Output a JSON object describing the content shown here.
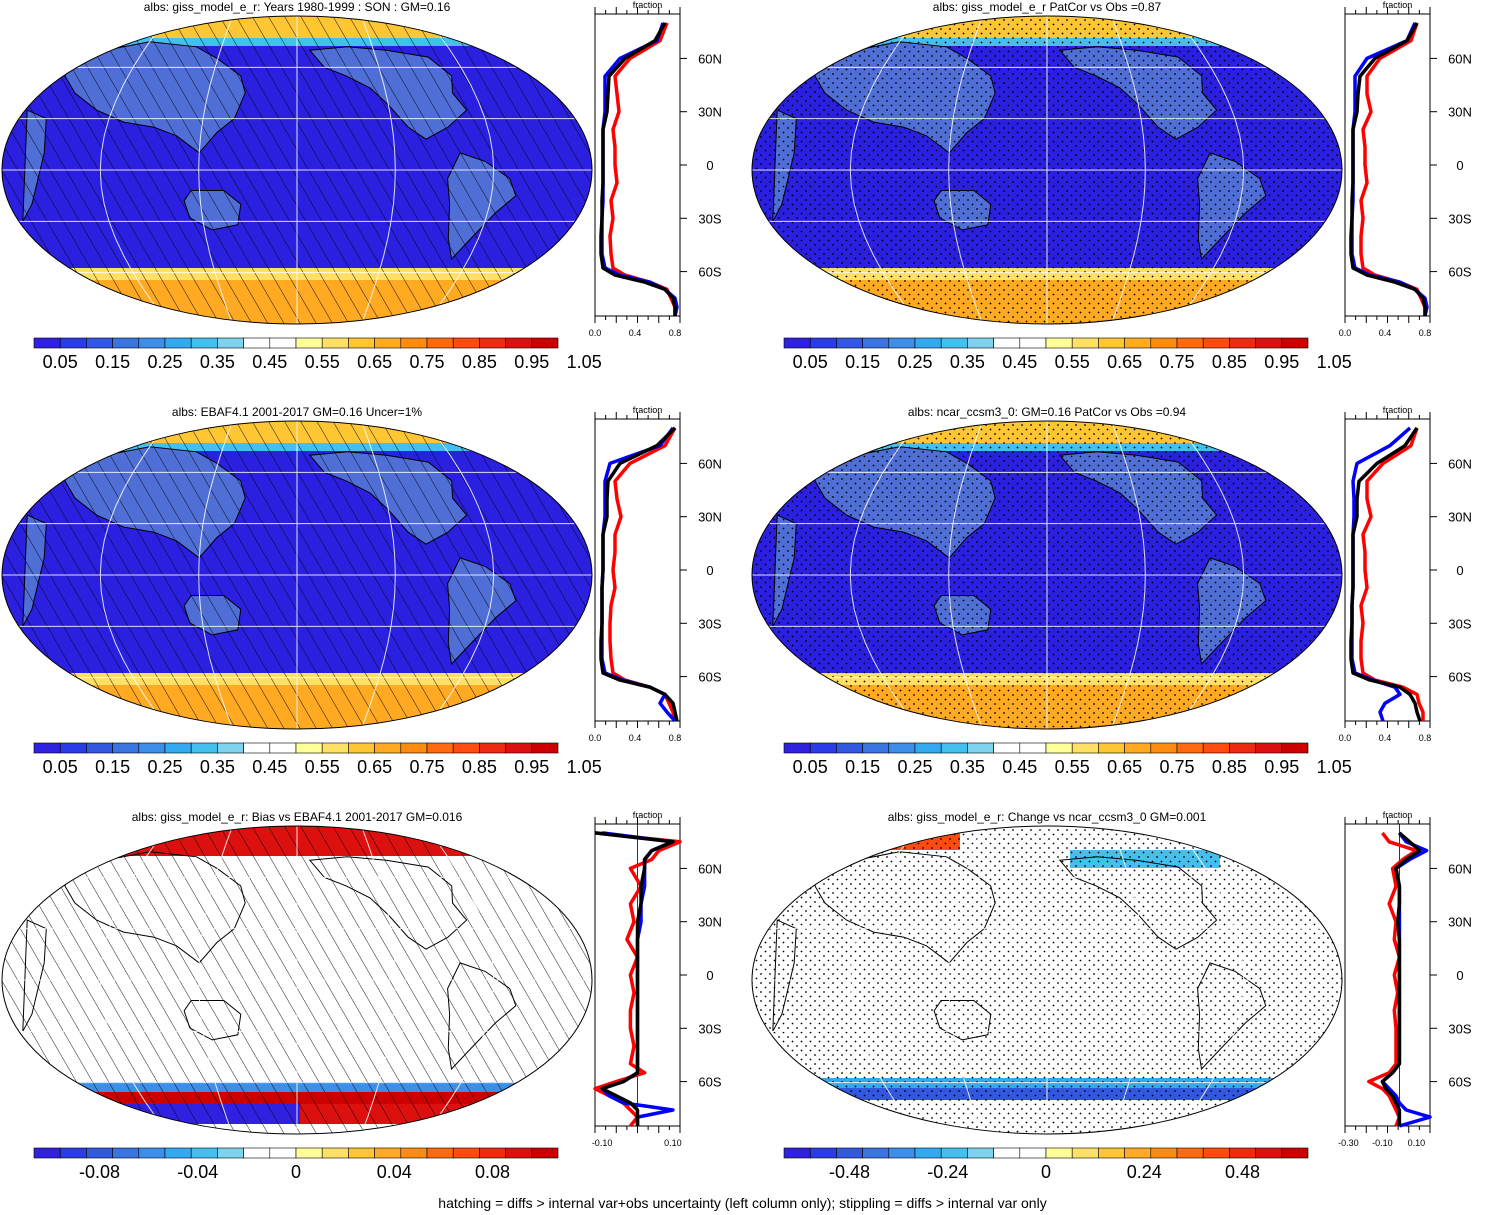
{
  "colors": {
    "model": "#000000",
    "obs": "#ff0000",
    "other_model": "#0000ff",
    "land": "#4f6fd6",
    "grid": "#ffffff"
  },
  "lat_ticks": [
    "60N",
    "30N",
    "0",
    "30S",
    "60S"
  ],
  "footnote": "hatching = diffs > internal var+obs uncertainty (left column only); stippling = diffs > internal var only",
  "panels": [
    {
      "id": "p1",
      "title": "albs: giss_model_e_r: Years 1980-1999 : SON : GM=0.16",
      "field": "absolute",
      "pattern": "hatch",
      "colorbar_labels": [
        "0.05",
        "0.15",
        "0.25",
        "0.35",
        "0.45",
        "0.55",
        "0.65",
        "0.75",
        "0.85",
        "0.95",
        "1.05"
      ],
      "zonal": {
        "unit_label": "fraction",
        "xticks": [
          "0.0",
          "0.4",
          "0.8"
        ],
        "xlim": [
          0.0,
          0.85
        ]
      }
    },
    {
      "id": "p2",
      "title": "albs: giss_model_e_r PatCor vs Obs =0.87",
      "field": "absolute",
      "pattern": "stipple",
      "colorbar_labels": [
        "0.05",
        "0.15",
        "0.25",
        "0.35",
        "0.45",
        "0.55",
        "0.65",
        "0.75",
        "0.85",
        "0.95",
        "1.05"
      ],
      "zonal": {
        "unit_label": "fraction",
        "xticks": [
          "0.0",
          "0.4",
          "0.8"
        ],
        "xlim": [
          0.0,
          0.85
        ]
      }
    },
    {
      "id": "p3",
      "title": "albs: EBAF4.1 2001-2017 GM=0.16 Uncer=1%",
      "field": "absolute",
      "pattern": "hatch",
      "colorbar_labels": [
        "0.05",
        "0.15",
        "0.25",
        "0.35",
        "0.45",
        "0.55",
        "0.65",
        "0.75",
        "0.85",
        "0.95",
        "1.05"
      ],
      "zonal": {
        "unit_label": "fraction",
        "xticks": [
          "0.0",
          "0.4",
          "0.8"
        ],
        "xlim": [
          0.0,
          0.85
        ]
      }
    },
    {
      "id": "p4",
      "title": "albs: ncar_ccsm3_0: GM=0.16 PatCor vs Obs =0.94",
      "field": "absolute",
      "pattern": "stipple",
      "colorbar_labels": [
        "0.05",
        "0.15",
        "0.25",
        "0.35",
        "0.45",
        "0.55",
        "0.65",
        "0.75",
        "0.85",
        "0.95",
        "1.05"
      ],
      "zonal": {
        "unit_label": "fraction",
        "xticks": [
          "0.0",
          "0.4",
          "0.8"
        ],
        "xlim": [
          0.0,
          0.85
        ]
      }
    },
    {
      "id": "p5",
      "title": "albs: giss_model_e_r: Bias vs EBAF4.1 2001-2017  GM=0.016",
      "field": "diff",
      "pattern": "hatch",
      "colorbar_labels": [
        "-0.08",
        "-0.04",
        "0",
        "0.04",
        "0.08"
      ],
      "zonal": {
        "unit_label": "fraction",
        "xticks": [
          "-0.10",
          "0.10"
        ],
        "xlim": [
          -0.12,
          0.12
        ]
      }
    },
    {
      "id": "p6",
      "title": "albs: giss_model_e_r: Change vs ncar_ccsm3_0 GM=0.001",
      "field": "diff",
      "pattern": "stipple",
      "colorbar_labels": [
        "-0.48",
        "-0.24",
        "0",
        "0.24",
        "0.48"
      ],
      "zonal": {
        "unit_label": "fraction",
        "xticks": [
          "-0.30",
          "-0.10",
          "0.10"
        ],
        "xlim": [
          -0.32,
          0.18
        ]
      }
    }
  ],
  "chart_data": [
    {
      "type": "line",
      "panel": "p1",
      "lat": [
        80,
        70,
        60,
        50,
        40,
        30,
        20,
        10,
        0,
        -10,
        -20,
        -30,
        -40,
        -50,
        -58,
        -62,
        -66,
        -70,
        -75,
        -80,
        -85
      ],
      "series": [
        {
          "values": [
            0.7,
            0.6,
            0.3,
            0.14,
            0.13,
            0.12,
            0.08,
            0.08,
            0.08,
            0.08,
            0.07,
            0.07,
            0.06,
            0.06,
            0.08,
            0.2,
            0.5,
            0.7,
            0.78,
            0.8,
            0.8
          ]
        },
        {
          "values": [
            0.72,
            0.65,
            0.35,
            0.2,
            0.22,
            0.24,
            0.18,
            0.2,
            0.2,
            0.22,
            0.16,
            0.18,
            0.15,
            0.16,
            0.18,
            0.3,
            0.55,
            0.72,
            0.76,
            0.8,
            0.8
          ]
        },
        {
          "values": [
            0.68,
            0.62,
            0.25,
            0.1,
            0.1,
            0.1,
            0.08,
            0.08,
            0.08,
            0.08,
            0.08,
            0.07,
            0.07,
            0.07,
            0.1,
            0.25,
            0.55,
            0.7,
            0.8,
            0.82,
            0.8
          ]
        }
      ]
    },
    {
      "type": "line",
      "panel": "p2",
      "lat": [
        80,
        70,
        60,
        50,
        40,
        30,
        20,
        10,
        0,
        -10,
        -20,
        -30,
        -40,
        -50,
        -58,
        -62,
        -66,
        -70,
        -75,
        -80,
        -85
      ],
      "series": [
        {
          "values": [
            0.72,
            0.62,
            0.3,
            0.15,
            0.13,
            0.12,
            0.08,
            0.08,
            0.08,
            0.08,
            0.07,
            0.07,
            0.06,
            0.06,
            0.08,
            0.22,
            0.5,
            0.7,
            0.78,
            0.8,
            0.8
          ]
        },
        {
          "values": [
            0.72,
            0.66,
            0.35,
            0.22,
            0.22,
            0.26,
            0.18,
            0.2,
            0.2,
            0.22,
            0.16,
            0.18,
            0.16,
            0.16,
            0.18,
            0.3,
            0.55,
            0.72,
            0.76,
            0.8,
            0.8
          ]
        },
        {
          "values": [
            0.7,
            0.62,
            0.22,
            0.1,
            0.1,
            0.1,
            0.08,
            0.08,
            0.08,
            0.08,
            0.08,
            0.07,
            0.07,
            0.07,
            0.1,
            0.25,
            0.55,
            0.7,
            0.8,
            0.82,
            0.8
          ]
        }
      ]
    },
    {
      "type": "line",
      "panel": "p3",
      "lat": [
        80,
        70,
        60,
        50,
        40,
        30,
        20,
        10,
        0,
        -10,
        -20,
        -30,
        -40,
        -50,
        -58,
        -62,
        -66,
        -70,
        -75,
        -80,
        -85
      ],
      "series": [
        {
          "values": [
            0.8,
            0.62,
            0.25,
            0.13,
            0.12,
            0.12,
            0.08,
            0.08,
            0.08,
            0.07,
            0.07,
            0.07,
            0.06,
            0.06,
            0.08,
            0.25,
            0.55,
            0.7,
            0.78,
            0.8,
            0.82
          ]
        },
        {
          "values": [
            0.8,
            0.7,
            0.35,
            0.2,
            0.22,
            0.26,
            0.2,
            0.2,
            0.18,
            0.2,
            0.16,
            0.15,
            0.15,
            0.16,
            0.18,
            0.3,
            0.55,
            0.7,
            0.74,
            0.78,
            0.8
          ]
        },
        {
          "values": [
            0.78,
            0.65,
            0.15,
            0.1,
            0.1,
            0.1,
            0.08,
            0.08,
            0.08,
            0.07,
            0.07,
            0.07,
            0.07,
            0.07,
            0.1,
            0.28,
            0.55,
            0.7,
            0.65,
            0.72,
            0.8
          ]
        }
      ]
    },
    {
      "type": "line",
      "panel": "p4",
      "lat": [
        80,
        70,
        60,
        50,
        40,
        30,
        20,
        10,
        0,
        -10,
        -20,
        -30,
        -40,
        -50,
        -58,
        -62,
        -66,
        -70,
        -75,
        -80,
        -85
      ],
      "series": [
        {
          "values": [
            0.72,
            0.6,
            0.32,
            0.14,
            0.12,
            0.12,
            0.08,
            0.08,
            0.08,
            0.08,
            0.07,
            0.07,
            0.06,
            0.06,
            0.08,
            0.25,
            0.55,
            0.65,
            0.7,
            0.72,
            0.75
          ]
        },
        {
          "values": [
            0.72,
            0.66,
            0.38,
            0.22,
            0.22,
            0.26,
            0.18,
            0.2,
            0.2,
            0.22,
            0.16,
            0.18,
            0.16,
            0.16,
            0.18,
            0.3,
            0.58,
            0.72,
            0.74,
            0.78,
            0.78
          ]
        },
        {
          "values": [
            0.65,
            0.45,
            0.12,
            0.08,
            0.09,
            0.09,
            0.08,
            0.08,
            0.08,
            0.08,
            0.07,
            0.07,
            0.07,
            0.07,
            0.1,
            0.28,
            0.5,
            0.55,
            0.4,
            0.35,
            0.38
          ]
        }
      ]
    },
    {
      "type": "line",
      "panel": "p5",
      "lat": [
        80,
        75,
        70,
        65,
        60,
        50,
        40,
        30,
        20,
        10,
        0,
        -10,
        -20,
        -30,
        -40,
        -50,
        -55,
        -60,
        -64,
        -68,
        -72,
        -76,
        -80,
        -85
      ],
      "series": [
        {
          "values": [
            -0.12,
            0.1,
            0.04,
            0.02,
            0.02,
            0.01,
            0.01,
            0.0,
            0.0,
            0.0,
            0.0,
            0.0,
            0.0,
            0.0,
            0.0,
            0.0,
            0.0,
            -0.04,
            -0.1,
            -0.06,
            -0.02,
            0.0,
            0.0,
            0.0
          ]
        },
        {
          "values": [
            -0.12,
            0.12,
            0.06,
            0.04,
            -0.02,
            0.01,
            -0.02,
            -0.01,
            -0.03,
            0.0,
            -0.02,
            -0.01,
            -0.02,
            -0.02,
            -0.01,
            -0.02,
            0.02,
            -0.06,
            -0.12,
            -0.08,
            -0.04,
            -0.02,
            0.0,
            -0.02
          ]
        },
        {
          "values": [
            -0.1,
            0.1,
            0.04,
            0.02,
            0.02,
            0.02,
            0.01,
            0.01,
            0.0,
            0.0,
            0.0,
            0.0,
            0.0,
            0.0,
            0.0,
            0.0,
            0.0,
            -0.04,
            -0.1,
            -0.08,
            -0.04,
            0.1,
            0.0,
            0.0
          ]
        }
      ]
    },
    {
      "type": "line",
      "panel": "p6",
      "lat": [
        80,
        75,
        70,
        65,
        60,
        50,
        40,
        30,
        20,
        10,
        0,
        -10,
        -20,
        -30,
        -40,
        -50,
        -55,
        -60,
        -64,
        -68,
        -72,
        -76,
        -80,
        -85
      ],
      "series": [
        {
          "values": [
            0.0,
            0.06,
            0.12,
            0.04,
            -0.02,
            0.0,
            0.0,
            -0.01,
            0.0,
            0.0,
            0.0,
            0.0,
            0.0,
            0.0,
            0.0,
            0.0,
            -0.04,
            -0.1,
            -0.08,
            -0.04,
            -0.02,
            0.0,
            0.0,
            0.0
          ]
        },
        {
          "values": [
            -0.1,
            -0.06,
            0.1,
            0.02,
            -0.04,
            -0.02,
            -0.06,
            -0.02,
            -0.03,
            0.0,
            -0.03,
            -0.01,
            -0.03,
            -0.02,
            -0.02,
            -0.02,
            -0.06,
            -0.18,
            -0.1,
            -0.06,
            -0.04,
            -0.02,
            0.0,
            -0.02
          ]
        },
        {
          "values": [
            0.0,
            0.04,
            0.16,
            0.06,
            -0.02,
            0.0,
            0.0,
            0.0,
            0.0,
            0.0,
            0.0,
            0.0,
            0.0,
            0.0,
            0.0,
            0.0,
            -0.04,
            -0.1,
            -0.06,
            -0.02,
            0.0,
            0.04,
            0.18,
            0.0
          ]
        }
      ]
    }
  ]
}
